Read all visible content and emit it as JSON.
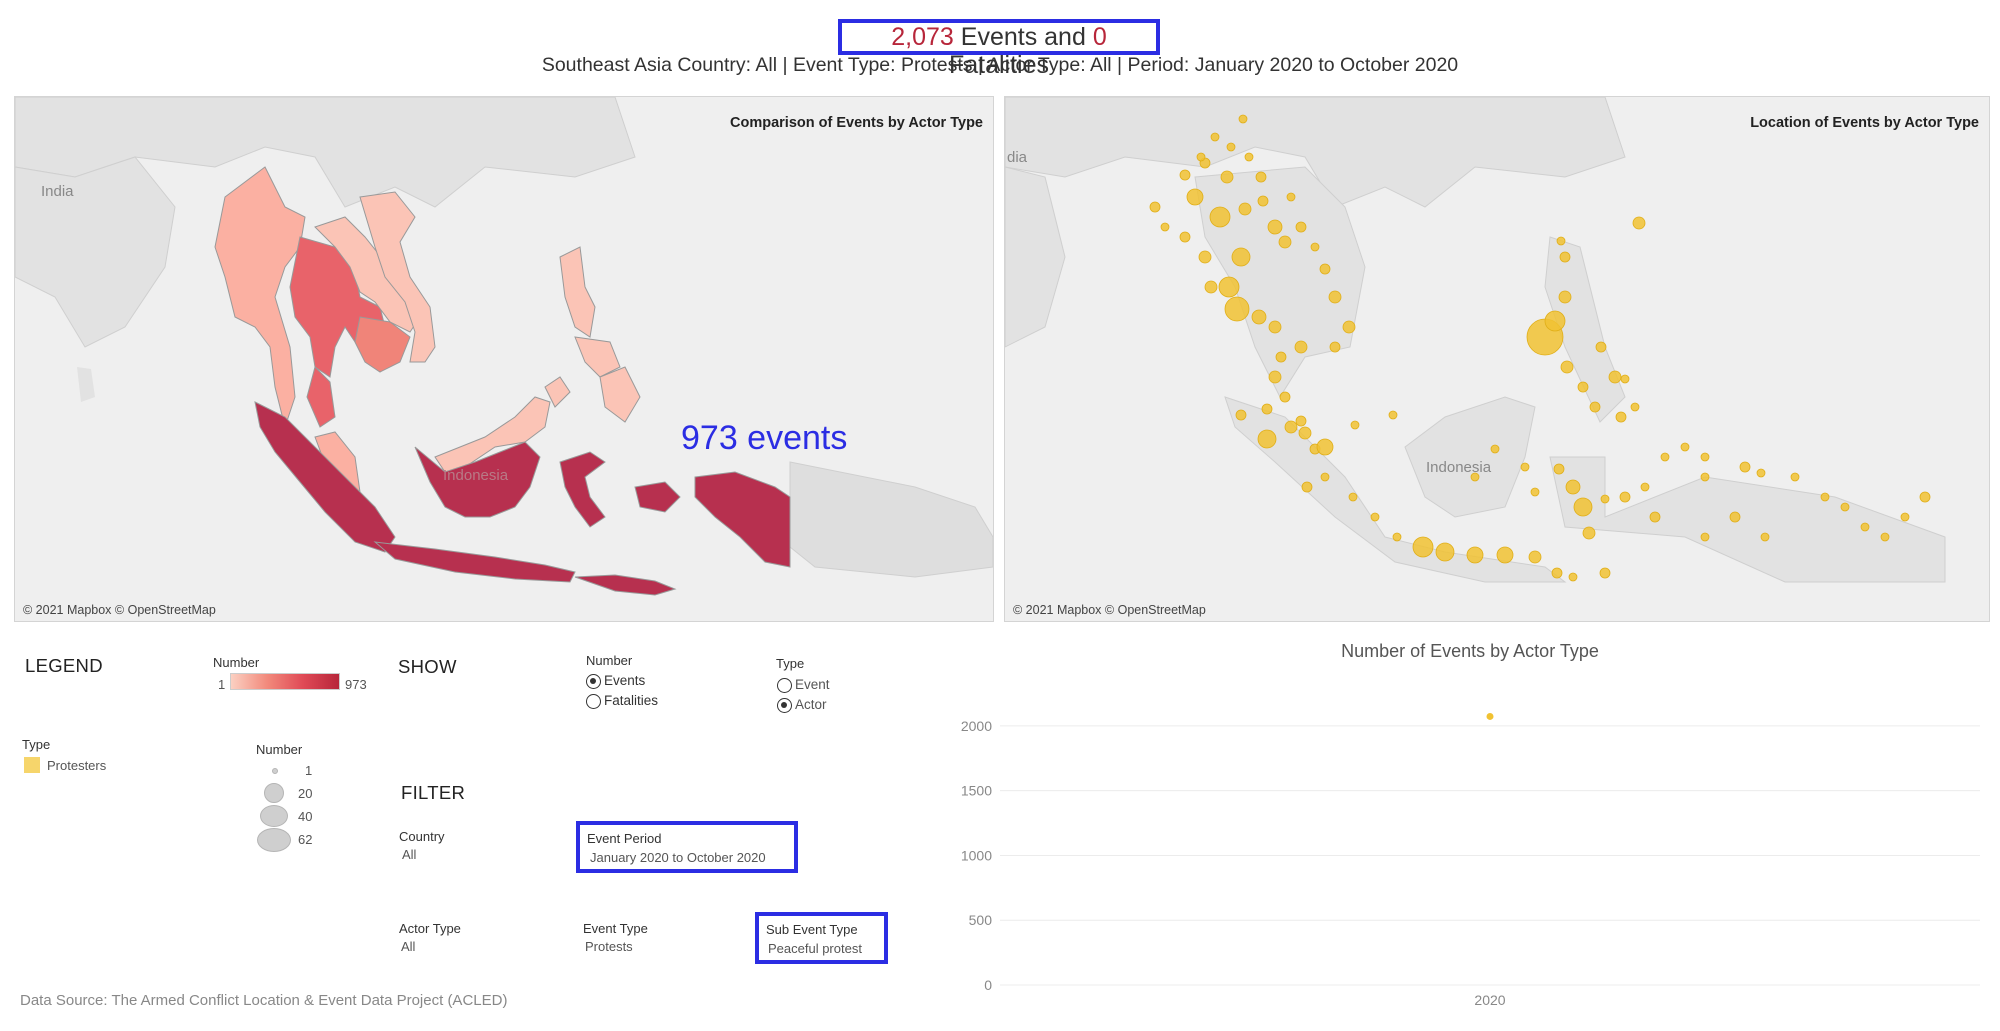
{
  "header": {
    "events_count": "2,073",
    "events_text": " Events and ",
    "fatalities_count": "0",
    "fatalities_text": " Fatalities",
    "subtitle": "Southeast Asia Country: All | Event Type: Protests | Actor Type: All | Period: January 2020 to October 2020"
  },
  "left_map": {
    "title": "Comparison of Events by Actor Type",
    "credit": "© 2021 Mapbox © OpenStreetMap",
    "labels": {
      "india": "India",
      "indonesia": "Indonesia"
    },
    "annotation": "973 events",
    "colors": {
      "light": "#fbb0a2",
      "mid": "#e8636a",
      "dark": "#b7304f"
    }
  },
  "right_map": {
    "title": "Location of Events by Actor Type",
    "credit": "© 2021 Mapbox © OpenStreetMap",
    "labels": {
      "india": "dia",
      "indonesia": "Indonesia"
    },
    "dot_color": "#f1c232"
  },
  "legend": {
    "title": "LEGEND",
    "number_label": "Number",
    "number_min": "1",
    "number_max": "973",
    "type_label": "Type",
    "type_item": "Protesters",
    "type_color": "#f6d56b",
    "size_label": "Number",
    "sizes": [
      "1",
      "20",
      "40",
      "62"
    ]
  },
  "show": {
    "title": "SHOW",
    "number_label": "Number",
    "number_options": [
      {
        "label": "Events",
        "selected": true
      },
      {
        "label": "Fatalities",
        "selected": false
      }
    ],
    "type_label": "Type",
    "type_options": [
      {
        "label": "Event",
        "selected": false
      },
      {
        "label": "Actor",
        "selected": true
      }
    ]
  },
  "filter": {
    "title": "FILTER",
    "country_label": "Country",
    "country_value": "All",
    "event_period_label": "Event Period",
    "event_period_value": "January 2020 to October 2020",
    "actor_type_label": "Actor Type",
    "actor_type_value": "All",
    "event_type_label": "Event Type",
    "event_type_value": "Protests",
    "sub_event_type_label": "Sub Event Type",
    "sub_event_type_value": "Peaceful protest"
  },
  "chart_data": {
    "type": "scatter",
    "title": "Number of Events by Actor Type",
    "categories": [
      "2020"
    ],
    "values": [
      2073
    ],
    "y_ticks": [
      "0",
      "500",
      "1000",
      "1500",
      "2000"
    ],
    "ylim": [
      0,
      2200
    ],
    "color": "#f1c232",
    "grid": true
  },
  "footer": {
    "source": "Data Source: The Armed Conflict Location & Event Data Project (ACLED)"
  }
}
